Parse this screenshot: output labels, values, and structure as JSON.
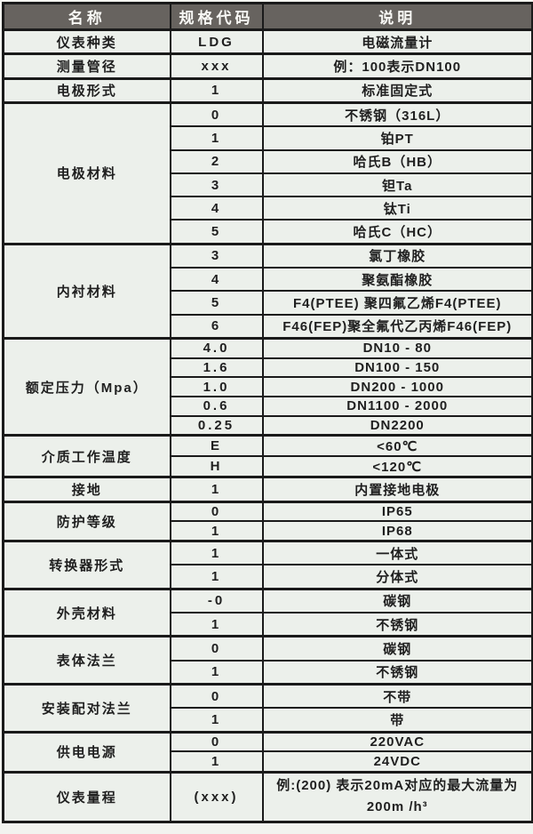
{
  "colors": {
    "header_bg": "#67635f",
    "header_text": "#f8f8f5",
    "cell_bg": "#ecf0eb",
    "border": "#1a1a1a"
  },
  "table": {
    "header": {
      "name": "名称",
      "code": "规格代码",
      "desc": "说明"
    },
    "groups": [
      {
        "name": "仪表种类",
        "rows": [
          {
            "code": "LDG",
            "desc": "电磁流量计"
          }
        ]
      },
      {
        "name": "测量管径",
        "rows": [
          {
            "code": "xxx",
            "desc": "例：100表示DN100"
          }
        ]
      },
      {
        "name": "电极形式",
        "rows": [
          {
            "code": "1",
            "desc": "标准固定式"
          }
        ]
      },
      {
        "name": "电极材料",
        "rows": [
          {
            "code": "0",
            "desc": "不锈钢（316L）"
          },
          {
            "code": "1",
            "desc": "铂PT"
          },
          {
            "code": "2",
            "desc": "哈氏B（HB）"
          },
          {
            "code": "3",
            "desc": "钽Ta"
          },
          {
            "code": "4",
            "desc": "钛Ti"
          },
          {
            "code": "5",
            "desc": "哈氏C（HC）"
          }
        ]
      },
      {
        "name": "内衬材料",
        "rows": [
          {
            "code": "3",
            "desc": "氯丁橡胶"
          },
          {
            "code": "4",
            "desc": "聚氨酯橡胶"
          },
          {
            "code": "5",
            "desc": "F4(PTEE) 聚四氟乙烯F4(PTEE)"
          },
          {
            "code": "6",
            "desc": "F46(FEP)聚全氟代乙丙烯F46(FEP)"
          }
        ]
      },
      {
        "name": "额定压力（Mpa）",
        "rows": [
          {
            "code": "4.0",
            "desc": "DN10 - 80"
          },
          {
            "code": "1.6",
            "desc": "DN100 - 150"
          },
          {
            "code": "1.0",
            "desc": "DN200 - 1000"
          },
          {
            "code": "0.6",
            "desc": "DN1100 - 2000"
          },
          {
            "code": "0.25",
            "desc": "DN2200"
          }
        ]
      },
      {
        "name": "介质工作温度",
        "rows": [
          {
            "code": "E",
            "desc": "<60℃"
          },
          {
            "code": "H",
            "desc": "<120℃"
          }
        ]
      },
      {
        "name": "接地",
        "rows": [
          {
            "code": "1",
            "desc": "内置接地电极"
          }
        ]
      },
      {
        "name": "防护等级",
        "rows": [
          {
            "code": "0",
            "desc": "IP65"
          },
          {
            "code": "1",
            "desc": "IP68"
          }
        ]
      },
      {
        "name": "转换器形式",
        "rows": [
          {
            "code": "1",
            "desc": "一体式"
          },
          {
            "code": "1",
            "desc": "分体式"
          }
        ]
      },
      {
        "name": "外壳材料",
        "rows": [
          {
            "code": "-0",
            "desc": "碳钢"
          },
          {
            "code": "1",
            "desc": "不锈钢"
          }
        ]
      },
      {
        "name": "表体法兰",
        "rows": [
          {
            "code": "0",
            "desc": "碳钢"
          },
          {
            "code": "1",
            "desc": "不锈钢"
          }
        ]
      },
      {
        "name": "安装配对法兰",
        "rows": [
          {
            "code": "0",
            "desc": "不带"
          },
          {
            "code": "1",
            "desc": "带"
          }
        ]
      },
      {
        "name": "供电电源",
        "rows": [
          {
            "code": "0",
            "desc": "220VAC"
          },
          {
            "code": "1",
            "desc": "24VDC"
          }
        ]
      },
      {
        "name": "仪表量程",
        "rows": [
          {
            "code": "(xxx)",
            "desc": "例:(200) 表示20mA对应的最大流量为200m /h³",
            "tall": true
          }
        ]
      }
    ]
  }
}
